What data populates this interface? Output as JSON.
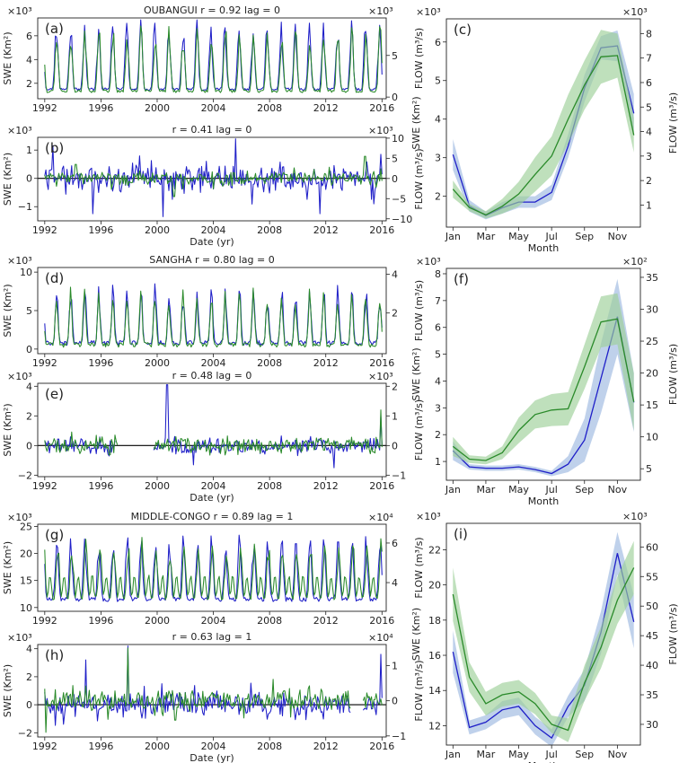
{
  "colors": {
    "swe": "#1f1fc8",
    "flow": "#2a8a2a",
    "swe_band": "#9db8e0",
    "flow_band": "#9ccf98"
  },
  "chart_data": [
    {
      "id": "a",
      "type": "line",
      "panel_label": "(a)",
      "title": "OUBANGUI r = 0.92 lag = 0",
      "ylabel_left": "SWE (Km²)",
      "ylabel_right": "FLOW (m³/s)",
      "xlabel": "",
      "exp_left": "×10³",
      "exp_right": "×10³",
      "xlim": [
        1991.5,
        2016.3
      ],
      "ylim_left": [
        0.7,
        7.5
      ],
      "ylim_right": [
        -0.2,
        9.5
      ],
      "yticks_left": [
        "2",
        "4",
        "6"
      ],
      "yticks_left_vals": [
        2,
        4,
        6
      ],
      "yticks_right": [
        "0",
        "5"
      ],
      "yticks_right_vals": [
        0,
        5
      ],
      "xticks": [
        "1992",
        "1996",
        "2000",
        "2004",
        "2008",
        "2012",
        "2016"
      ],
      "xticks_vals": [
        1992,
        1996,
        2000,
        2004,
        2008,
        2012,
        2016
      ],
      "series": [
        {
          "key": "swe",
          "axis": "left",
          "gen": {
            "base": 1.5,
            "amp": 5.0,
            "phase": 0.83,
            "sharp": 3,
            "noise": 0.5,
            "years": [
              1992,
              2016
            ]
          }
        },
        {
          "key": "flow",
          "axis": "right",
          "gen": {
            "base": 0.7,
            "amp": 6.8,
            "phase": 0.86,
            "sharp": 3,
            "noise": 0.8,
            "years": [
              1992,
              2016
            ]
          }
        }
      ]
    },
    {
      "id": "b",
      "type": "line",
      "panel_label": "(b)",
      "title": "r = 0.41 lag = 0",
      "ylabel_left": "SWE (Km²)",
      "ylabel_right": "FLOW (m³/s)",
      "xlabel": "Date (yr)",
      "exp_left": "×10³",
      "exp_right": "×10³",
      "xlim": [
        1991.5,
        2016.3
      ],
      "ylim_left": [
        -1.5,
        1.45
      ],
      "ylim_right": [
        -10.5,
        10.2
      ],
      "yticks_left": [
        "−1",
        "0",
        "1"
      ],
      "yticks_left_vals": [
        -1,
        0,
        1
      ],
      "yticks_right": [
        "−10",
        "−5",
        "0",
        "5",
        "10"
      ],
      "yticks_right_vals": [
        -10,
        -5,
        0,
        5,
        10
      ],
      "xticks": [
        "1992",
        "1996",
        "2000",
        "2004",
        "2008",
        "2012",
        "2016"
      ],
      "xticks_vals": [
        1992,
        1996,
        2000,
        2004,
        2008,
        2012,
        2016
      ],
      "zero_line": true,
      "series": [
        {
          "key": "swe",
          "axis": "left",
          "gen": {
            "anom": true,
            "amp": 0.45,
            "spikes": [
              [
                1992.6,
                1.15
              ],
              [
                1995.4,
                -1.25
              ],
              [
                2000.4,
                -1.35
              ],
              [
                2005.6,
                1.4
              ],
              [
                2011.6,
                -1.25
              ],
              [
                2015.4,
                -0.9
              ],
              [
                2015.9,
                0.85
              ]
            ],
            "years": [
              1992,
              2016
            ]
          }
        },
        {
          "key": "flow",
          "axis": "right",
          "gen": {
            "anom": true,
            "amp": 1.6,
            "spikes": [
              [
                1994.2,
                3.5
              ],
              [
                2001.2,
                -4.5
              ],
              [
                2014.8,
                5.5
              ]
            ],
            "years": [
              1992,
              2016
            ]
          }
        }
      ]
    },
    {
      "id": "c",
      "type": "line_band",
      "panel_label": "(c)",
      "title": "",
      "ylabel_left": "SWE (Km²)",
      "ylabel_right": "FLOW (m³/s)",
      "xlabel": "Month",
      "exp_left": "×10³",
      "exp_right": "×10³",
      "xlim": [
        0.6,
        12.4
      ],
      "ylim_left": [
        1.2,
        6.6
      ],
      "ylim_right": [
        0.1,
        8.6
      ],
      "yticks_left": [
        "2",
        "3",
        "4",
        "5",
        "6"
      ],
      "yticks_left_vals": [
        2,
        3,
        4,
        5,
        6
      ],
      "yticks_right": [
        "1",
        "2",
        "3",
        "4",
        "5",
        "6",
        "7",
        "8"
      ],
      "yticks_right_vals": [
        1,
        2,
        3,
        4,
        5,
        6,
        7,
        8
      ],
      "xticks": [
        "Jan",
        "Mar",
        "May",
        "Jul",
        "Sep",
        "Nov"
      ],
      "xticks_vals": [
        1,
        3,
        5,
        7,
        9,
        11
      ],
      "months": [
        1,
        2,
        3,
        4,
        5,
        6,
        7,
        8,
        9,
        10,
        11,
        12
      ],
      "series": [
        {
          "key": "swe",
          "axis": "left",
          "mean": [
            3.08,
            1.75,
            1.5,
            1.7,
            1.85,
            1.85,
            2.1,
            3.3,
            4.8,
            5.85,
            5.9,
            4.15
          ],
          "band": [
            0.4,
            0.15,
            0.1,
            0.15,
            0.15,
            0.15,
            0.2,
            0.3,
            0.35,
            0.3,
            0.4,
            0.5
          ]
        },
        {
          "key": "flow",
          "axis": "right",
          "mean": [
            1.65,
            0.9,
            0.6,
            0.95,
            1.45,
            2.25,
            3.0,
            4.5,
            5.9,
            7.05,
            7.1,
            3.85
          ],
          "band": [
            0.35,
            0.15,
            0.15,
            0.3,
            0.5,
            0.7,
            0.8,
            1.0,
            1.0,
            1.1,
            0.9,
            0.7
          ]
        }
      ]
    },
    {
      "id": "d",
      "type": "line",
      "panel_label": "(d)",
      "title": "SANGHA r = 0.80 lag = 0",
      "ylabel_left": "SWE (Km²)",
      "ylabel_right": "FLOW (m³/s)",
      "xlabel": "",
      "exp_left": "×10³",
      "exp_right": "",
      "xlim": [
        1991.5,
        2016.3
      ],
      "ylim_left": [
        -0.6,
        10.6
      ],
      "ylim_right": [
        -0.1,
        4.35
      ],
      "yticks_left": [
        "0",
        "5",
        "10"
      ],
      "yticks_left_vals": [
        0,
        5,
        10
      ],
      "yticks_right": [
        "2",
        "4"
      ],
      "yticks_right_vals": [
        2,
        4
      ],
      "xticks": [
        "1992",
        "1996",
        "2000",
        "2004",
        "2008",
        "2012",
        "2016"
      ],
      "xticks_vals": [
        1992,
        1996,
        2000,
        2004,
        2008,
        2012,
        2016
      ],
      "series": [
        {
          "key": "swe",
          "axis": "left",
          "gen": {
            "base": 0.8,
            "amp": 6.5,
            "phase": 0.86,
            "sharp": 4,
            "noise": 1.5,
            "years": [
              1992,
              2016
            ]
          }
        },
        {
          "key": "flow",
          "axis": "right",
          "gen": {
            "base": 0.35,
            "amp": 2.5,
            "phase": 0.84,
            "sharp": 4,
            "noise": 0.6,
            "years": [
              1992,
              2016
            ]
          }
        }
      ]
    },
    {
      "id": "e",
      "type": "line",
      "panel_label": "(e)",
      "title": "r = 0.48 lag = 0",
      "ylabel_left": "SWE (Km²)",
      "ylabel_right": "FLOW (m³/s)",
      "xlabel": "Date (yr)",
      "exp_left": "×10³",
      "exp_right": "×10³",
      "xlim": [
        1991.5,
        2016.3
      ],
      "ylim_left": [
        -2.1,
        4.2
      ],
      "ylim_right": [
        -1.05,
        2.1
      ],
      "yticks_left": [
        "−2",
        "0",
        "2",
        "4"
      ],
      "yticks_left_vals": [
        -2,
        0,
        2,
        4
      ],
      "yticks_right": [
        "−1",
        "0",
        "1",
        "2"
      ],
      "yticks_right_vals": [
        -1,
        0,
        1,
        2
      ],
      "xticks": [
        "1992",
        "1996",
        "2000",
        "2004",
        "2008",
        "2012",
        "2016"
      ],
      "xticks_vals": [
        1992,
        1996,
        2000,
        2004,
        2008,
        2012,
        2016
      ],
      "zero_line": true,
      "series": [
        {
          "key": "swe",
          "axis": "left",
          "gen": {
            "anom": true,
            "amp": 0.6,
            "spikes": [
              [
                2000.7,
                4.1
              ],
              [
                2002.6,
                -1.3
              ],
              [
                2012.6,
                -1.5
              ],
              [
                2015.9,
                2.0
              ]
            ],
            "gap": [
              1997,
              1999.7
            ],
            "years": [
              1992,
              2016
            ]
          }
        },
        {
          "key": "flow",
          "axis": "right",
          "gen": {
            "anom": true,
            "amp": 0.28,
            "spikes": [
              [
                2015.9,
                1.2
              ]
            ],
            "gap": [
              1997.2,
              1999.7
            ],
            "years": [
              1992,
              2016
            ]
          }
        }
      ]
    },
    {
      "id": "f",
      "type": "line_band",
      "panel_label": "(f)",
      "title": "",
      "ylabel_left": "SWE (Km²)",
      "ylabel_right": "FLOW (m³/s)",
      "xlabel": "Month",
      "exp_left": "×10³",
      "exp_right": "×10²",
      "xlim": [
        0.6,
        12.4
      ],
      "ylim_left": [
        0.3,
        8.2
      ],
      "ylim_right": [
        3.2,
        36.4
      ],
      "yticks_left": [
        "1",
        "2",
        "3",
        "4",
        "5",
        "6",
        "7",
        "8"
      ],
      "yticks_left_vals": [
        1,
        2,
        3,
        4,
        5,
        6,
        7,
        8
      ],
      "yticks_right": [
        "5",
        "10",
        "15",
        "20",
        "25",
        "30",
        "35"
      ],
      "yticks_right_vals": [
        5,
        10,
        15,
        20,
        25,
        30,
        35
      ],
      "xticks": [
        "Jan",
        "Mar",
        "May",
        "Jul",
        "Sep",
        "Nov"
      ],
      "xticks_vals": [
        1,
        3,
        5,
        7,
        9,
        11
      ],
      "months": [
        1,
        2,
        3,
        4,
        5,
        6,
        7,
        8,
        9,
        10,
        11,
        12
      ],
      "series": [
        {
          "key": "swe",
          "axis": "left",
          "mean": [
            1.4,
            0.8,
            0.75,
            0.75,
            0.8,
            0.7,
            0.55,
            0.9,
            1.8,
            4.1,
            6.4,
            3.2
          ],
          "band": [
            0.35,
            0.1,
            0.1,
            0.1,
            0.1,
            0.1,
            0.1,
            0.3,
            0.8,
            1.3,
            1.4,
            1.1
          ]
        },
        {
          "key": "flow",
          "axis": "right",
          "mean": [
            8.5,
            6.5,
            6.3,
            7.5,
            11.0,
            13.5,
            14.2,
            14.4,
            21.0,
            28.0,
            28.5,
            15.5
          ],
          "band": [
            1.5,
            0.6,
            0.6,
            1.0,
            2.0,
            2.2,
            2.5,
            2.6,
            3.5,
            4.0,
            4.0,
            4.5
          ]
        }
      ]
    },
    {
      "id": "g",
      "type": "line",
      "panel_label": "(g)",
      "title": "MIDDLE-CONGO r = 0.89 lag = 1",
      "ylabel_left": "SWE (Km²)",
      "ylabel_right": "FLOW (m³/s)",
      "xlabel": "",
      "exp_left": "×10³",
      "exp_right": "×10⁴",
      "xlim": [
        1991.5,
        2016.3
      ],
      "ylim_left": [
        9.3,
        25.4
      ],
      "ylim_right": [
        2.55,
        6.95
      ],
      "yticks_left": [
        "10",
        "15",
        "20",
        "25"
      ],
      "yticks_left_vals": [
        10,
        15,
        20,
        25
      ],
      "yticks_right": [
        "4",
        "6"
      ],
      "yticks_right_vals": [
        4,
        6
      ],
      "xticks": [
        "1992",
        "1996",
        "2000",
        "2004",
        "2008",
        "2012",
        "2016"
      ],
      "xticks_vals": [
        1992,
        1996,
        2000,
        2004,
        2008,
        2012,
        2016
      ],
      "series": [
        {
          "key": "swe",
          "axis": "left",
          "gen": {
            "base": 11.5,
            "amp": 10.5,
            "phase": 0.87,
            "sharp": 3,
            "noise": 2.0,
            "years": [
              1992,
              2016
            ]
          }
        },
        {
          "key": "flow",
          "axis": "right",
          "gen": {
            "base": 3.2,
            "amp": 2.6,
            "phase": 0.93,
            "sharp": 3,
            "noise": 0.5,
            "second": 0.45,
            "years": [
              1992,
              2016
            ]
          }
        }
      ]
    },
    {
      "id": "h",
      "type": "line",
      "panel_label": "(h)",
      "title": "r = 0.63 lag = 1",
      "ylabel_left": "SWE (Km²)",
      "ylabel_right": "FLOW (m³/s)",
      "xlabel": "Date (yr)",
      "exp_left": "×10³",
      "exp_right": "×10⁴",
      "xlim": [
        1991.5,
        2016.3
      ],
      "ylim_left": [
        -2.3,
        4.3
      ],
      "ylim_right": [
        -1.03,
        1.6
      ],
      "yticks_left": [
        "−2",
        "0",
        "2",
        "4"
      ],
      "yticks_left_vals": [
        -2,
        0,
        2,
        4
      ],
      "yticks_right": [
        "−1",
        "0",
        "1"
      ],
      "yticks_right_vals": [
        -1,
        0,
        1
      ],
      "xticks": [
        "1992",
        "1996",
        "2000",
        "2004",
        "2008",
        "2012",
        "2016"
      ],
      "xticks_vals": [
        1992,
        1996,
        2000,
        2004,
        2008,
        2012,
        2016
      ],
      "zero_line": true,
      "series": [
        {
          "key": "swe",
          "axis": "left",
          "gen": {
            "anom": true,
            "amp": 0.9,
            "spikes": [
              [
                1994.9,
                3.2
              ],
              [
                1997.9,
                4.2
              ],
              [
                2015.9,
                3.6
              ]
            ],
            "gap": [
              2013.8,
              2014.6
            ],
            "years": [
              1992,
              2016
            ]
          }
        },
        {
          "key": "flow",
          "axis": "right",
          "gen": {
            "anom": true,
            "amp": 0.3,
            "spikes": [
              [
                1992.1,
                -0.9
              ],
              [
                1997.9,
                1.5
              ],
              [
                2001.3,
                -0.55
              ]
            ],
            "gap": [
              2013.8,
              2014.6
            ],
            "years": [
              1992,
              2016
            ]
          }
        }
      ]
    },
    {
      "id": "i",
      "type": "line_band",
      "panel_label": "(i)",
      "title": "",
      "ylabel_left": "SWE (Km²)",
      "ylabel_right": "FLOW (m³/s)",
      "xlabel": "Month",
      "exp_left": "×10³",
      "exp_right": "×10³",
      "xlim": [
        0.6,
        12.4
      ],
      "ylim_left": [
        10.9,
        23.5
      ],
      "ylim_right": [
        26.5,
        64
      ],
      "yticks_left": [
        "12",
        "14",
        "16",
        "18",
        "20",
        "22"
      ],
      "yticks_left_vals": [
        12,
        14,
        16,
        18,
        20,
        22
      ],
      "yticks_right": [
        "30",
        "35",
        "40",
        "45",
        "50",
        "55",
        "60"
      ],
      "yticks_right_vals": [
        30,
        35,
        40,
        45,
        50,
        55,
        60
      ],
      "xticks": [
        "Jan",
        "Mar",
        "May",
        "Jul",
        "Sep",
        "Nov"
      ],
      "xticks_vals": [
        1,
        3,
        5,
        7,
        9,
        11
      ],
      "months": [
        1,
        2,
        3,
        4,
        5,
        6,
        7,
        8,
        9,
        10,
        11,
        12
      ],
      "series": [
        {
          "key": "swe",
          "axis": "left",
          "mean": [
            16.2,
            11.9,
            12.2,
            12.9,
            13.1,
            12.0,
            11.3,
            13.1,
            14.3,
            17.3,
            21.8,
            17.9
          ],
          "band": [
            1.2,
            0.4,
            0.4,
            0.5,
            0.5,
            0.5,
            0.5,
            0.6,
            0.9,
            1.2,
            1.2,
            1.5
          ]
        },
        {
          "key": "flow",
          "axis": "right",
          "mean": [
            52.0,
            38.0,
            33.5,
            35.0,
            35.5,
            33.5,
            30.0,
            29.0,
            37.0,
            43.0,
            51.0,
            56.5
          ],
          "band": [
            4.5,
            2.5,
            2.0,
            2.0,
            2.0,
            1.8,
            1.5,
            2.0,
            3.0,
            3.5,
            4.0,
            4.5
          ]
        }
      ]
    }
  ]
}
